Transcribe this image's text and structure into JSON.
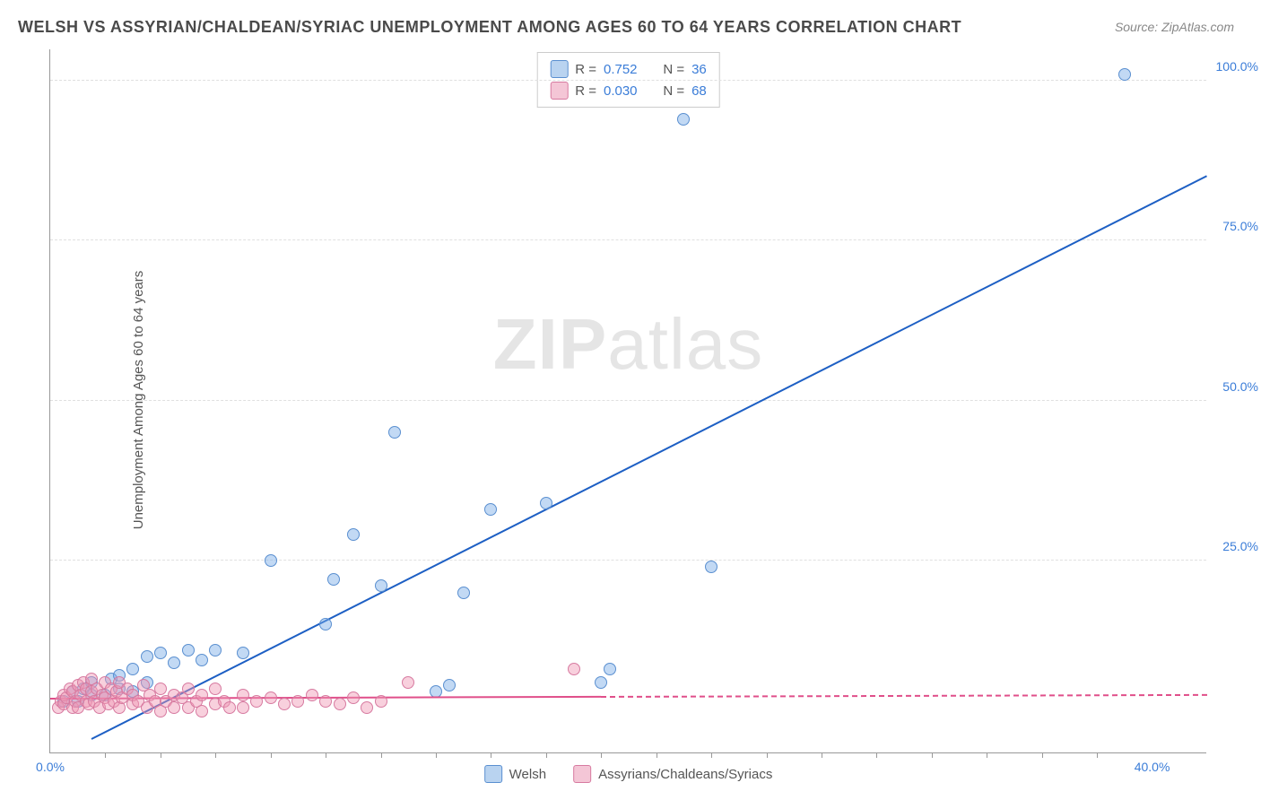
{
  "title": "WELSH VS ASSYRIAN/CHALDEAN/SYRIAC UNEMPLOYMENT AMONG AGES 60 TO 64 YEARS CORRELATION CHART",
  "source": "Source: ZipAtlas.com",
  "ylabel": "Unemployment Among Ages 60 to 64 years",
  "watermark_bold": "ZIP",
  "watermark_rest": "atlas",
  "chart": {
    "type": "scatter",
    "xlim": [
      0,
      42
    ],
    "ylim": [
      -5,
      105
    ],
    "xticks": [
      {
        "v": 0,
        "label": "0.0%",
        "color": "#3b7dd8"
      },
      {
        "v": 40,
        "label": "40.0%",
        "color": "#3b7dd8"
      }
    ],
    "xticks_minor": [
      2,
      4,
      6,
      8,
      10,
      12,
      14,
      16,
      18,
      20,
      22,
      24,
      26,
      28,
      30,
      32,
      34,
      36,
      38
    ],
    "yticks": [
      {
        "v": 25,
        "label": "25.0%",
        "color": "#3b7dd8"
      },
      {
        "v": 50,
        "label": "50.0%",
        "color": "#3b7dd8"
      },
      {
        "v": 75,
        "label": "75.0%",
        "color": "#3b7dd8"
      },
      {
        "v": 100,
        "label": "100.0%",
        "color": "#3b7dd8"
      }
    ],
    "grid_color": "#e0e0e0",
    "background_color": "#ffffff",
    "series": [
      {
        "name": "Welsh",
        "fill": "rgba(120,170,230,0.45)",
        "stroke": "#5a8fd0",
        "legend_fill": "#b9d3f0",
        "legend_stroke": "#5a8fd0",
        "r_value": "0.752",
        "n_value": "36",
        "trend": {
          "x1": 1.5,
          "y1": -3,
          "x2": 42,
          "y2": 85,
          "color": "#1d5fc4",
          "width": 2
        },
        "points": [
          [
            0.5,
            3
          ],
          [
            0.8,
            4.5
          ],
          [
            1,
            3
          ],
          [
            1.2,
            5
          ],
          [
            1.5,
            4
          ],
          [
            1.5,
            6
          ],
          [
            2,
            4
          ],
          [
            2.2,
            6.5
          ],
          [
            2.5,
            5
          ],
          [
            2.5,
            7
          ],
          [
            3,
            4.5
          ],
          [
            3,
            8
          ],
          [
            3.5,
            6
          ],
          [
            3.5,
            10
          ],
          [
            4,
            10.5
          ],
          [
            4.5,
            9
          ],
          [
            5,
            11
          ],
          [
            5.5,
            9.5
          ],
          [
            6,
            11
          ],
          [
            7,
            10.5
          ],
          [
            8,
            25
          ],
          [
            10,
            15
          ],
          [
            10.3,
            22
          ],
          [
            11,
            29
          ],
          [
            12,
            21
          ],
          [
            12.5,
            45
          ],
          [
            14,
            4.5
          ],
          [
            14.5,
            5.5
          ],
          [
            15,
            20
          ],
          [
            16,
            33
          ],
          [
            18,
            34
          ],
          [
            20,
            6
          ],
          [
            20.3,
            8
          ],
          [
            23,
            94
          ],
          [
            24,
            24
          ],
          [
            39,
            101
          ]
        ]
      },
      {
        "name": "Assyrians/Chaldeans/Syriacs",
        "fill": "rgba(240,150,180,0.45)",
        "stroke": "#d77aa0",
        "legend_fill": "#f4c6d6",
        "legend_stroke": "#d77aa0",
        "r_value": "0.030",
        "n_value": "68",
        "trend": {
          "x1": 0,
          "y1": 3.2,
          "x2": 20,
          "y2": 3.5,
          "color": "#e04f8a",
          "width": 2,
          "dash_ext": {
            "x1": 20,
            "y1": 3.5,
            "x2": 42,
            "y2": 3.8
          }
        },
        "points": [
          [
            0.3,
            2
          ],
          [
            0.4,
            3
          ],
          [
            0.5,
            2.5
          ],
          [
            0.5,
            4
          ],
          [
            0.6,
            3.5
          ],
          [
            0.7,
            5
          ],
          [
            0.8,
            2
          ],
          [
            0.8,
            4.5
          ],
          [
            0.9,
            3
          ],
          [
            1,
            5.5
          ],
          [
            1,
            2
          ],
          [
            1.1,
            4
          ],
          [
            1.2,
            6
          ],
          [
            1.3,
            3
          ],
          [
            1.3,
            5
          ],
          [
            1.4,
            2.5
          ],
          [
            1.5,
            4.5
          ],
          [
            1.5,
            6.5
          ],
          [
            1.6,
            3
          ],
          [
            1.7,
            5
          ],
          [
            1.8,
            2
          ],
          [
            1.9,
            4
          ],
          [
            2,
            3.5
          ],
          [
            2,
            6
          ],
          [
            2.1,
            2.5
          ],
          [
            2.2,
            5
          ],
          [
            2.3,
            3
          ],
          [
            2.4,
            4.5
          ],
          [
            2.5,
            2
          ],
          [
            2.5,
            6
          ],
          [
            2.6,
            3.5
          ],
          [
            2.8,
            5
          ],
          [
            3,
            2.5
          ],
          [
            3,
            4
          ],
          [
            3.2,
            3
          ],
          [
            3.4,
            5.5
          ],
          [
            3.5,
            2
          ],
          [
            3.6,
            4
          ],
          [
            3.8,
            3
          ],
          [
            4,
            1.5
          ],
          [
            4,
            5
          ],
          [
            4.2,
            3
          ],
          [
            4.5,
            4
          ],
          [
            4.5,
            2
          ],
          [
            4.8,
            3.5
          ],
          [
            5,
            2
          ],
          [
            5,
            5
          ],
          [
            5.3,
            3
          ],
          [
            5.5,
            1.5
          ],
          [
            5.5,
            4
          ],
          [
            6,
            2.5
          ],
          [
            6,
            5
          ],
          [
            6.3,
            3
          ],
          [
            6.5,
            2
          ],
          [
            7,
            4
          ],
          [
            7,
            2
          ],
          [
            7.5,
            3
          ],
          [
            8,
            3.5
          ],
          [
            8.5,
            2.5
          ],
          [
            9,
            3
          ],
          [
            9.5,
            4
          ],
          [
            10,
            3
          ],
          [
            10.5,
            2.5
          ],
          [
            11,
            3.5
          ],
          [
            11.5,
            2
          ],
          [
            12,
            3
          ],
          [
            13,
            6
          ],
          [
            19,
            8
          ]
        ]
      }
    ]
  },
  "legend_bottom": [
    {
      "label": "Welsh",
      "fill": "#b9d3f0",
      "stroke": "#5a8fd0"
    },
    {
      "label": "Assyrians/Chaldeans/Syriacs",
      "fill": "#f4c6d6",
      "stroke": "#d77aa0"
    }
  ]
}
